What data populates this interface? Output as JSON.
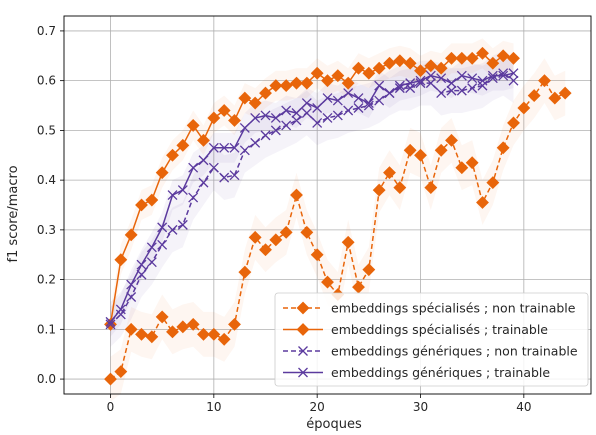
{
  "chart_data": {
    "type": "line",
    "xlabel": "époques",
    "ylabel": "f1 score/macro",
    "xlim": [
      -4.5,
      46.5
    ],
    "ylim": [
      -0.03,
      0.73
    ],
    "xticks": [
      0,
      10,
      20,
      30,
      40
    ],
    "yticks": [
      0.0,
      0.1,
      0.2,
      0.3,
      0.4,
      0.5,
      0.6,
      0.7
    ],
    "grid": true,
    "legend_position": "lower right",
    "series": [
      {
        "name": "embeddings spécialisés ; non trainable",
        "color": "#e8650a",
        "style": "dashed",
        "marker": "diamond",
        "x": [
          0,
          1,
          2,
          3,
          4,
          5,
          6,
          7,
          8,
          9,
          10,
          11,
          12,
          13,
          14,
          15,
          16,
          17,
          18,
          19,
          20,
          21,
          22,
          23,
          24,
          25,
          26,
          27,
          28,
          29,
          30,
          31,
          32,
          33,
          34,
          35,
          36,
          37,
          38,
          39,
          40,
          41,
          42,
          43,
          44
        ],
        "y": [
          0.0,
          0.015,
          0.1,
          0.09,
          0.085,
          0.125,
          0.095,
          0.105,
          0.11,
          0.09,
          0.09,
          0.08,
          0.11,
          0.215,
          0.285,
          0.26,
          0.28,
          0.295,
          0.37,
          0.295,
          0.25,
          0.195,
          0.17,
          0.275,
          0.185,
          0.22,
          0.38,
          0.415,
          0.385,
          0.46,
          0.45,
          0.385,
          0.46,
          0.48,
          0.425,
          0.435,
          0.355,
          0.395,
          0.465,
          0.515,
          0.545,
          0.57,
          0.6,
          0.565,
          0.575
        ]
      },
      {
        "name": "embeddings spécialisés ; trainable",
        "color": "#e8650a",
        "style": "solid",
        "marker": "diamond",
        "x": [
          0,
          1,
          2,
          3,
          4,
          5,
          6,
          7,
          8,
          9,
          10,
          11,
          12,
          13,
          14,
          15,
          16,
          17,
          18,
          19,
          20,
          21,
          22,
          23,
          24,
          25,
          26,
          27,
          28,
          29,
          30,
          31,
          32,
          33,
          34,
          35,
          36,
          37,
          38,
          39
        ],
        "y": [
          0.11,
          0.24,
          0.29,
          0.35,
          0.36,
          0.415,
          0.45,
          0.47,
          0.51,
          0.48,
          0.525,
          0.54,
          0.52,
          0.565,
          0.555,
          0.575,
          0.59,
          0.59,
          0.595,
          0.595,
          0.615,
          0.6,
          0.61,
          0.595,
          0.625,
          0.615,
          0.625,
          0.635,
          0.64,
          0.635,
          0.62,
          0.63,
          0.625,
          0.645,
          0.645,
          0.645,
          0.655,
          0.635,
          0.65,
          0.645
        ]
      },
      {
        "name": "embeddings génériques ; non trainable",
        "color": "#5b3a9e",
        "style": "dashed",
        "marker": "x",
        "x": [
          0,
          1,
          2,
          3,
          4,
          5,
          6,
          7,
          8,
          9,
          10,
          11,
          12,
          13,
          14,
          15,
          16,
          17,
          18,
          19,
          20,
          21,
          22,
          23,
          24,
          25,
          26,
          27,
          28,
          29,
          30,
          31,
          32,
          33,
          34,
          35,
          36,
          37,
          38,
          39
        ],
        "y": [
          0.11,
          0.13,
          0.165,
          0.21,
          0.235,
          0.27,
          0.3,
          0.31,
          0.365,
          0.395,
          0.425,
          0.405,
          0.41,
          0.46,
          0.475,
          0.49,
          0.5,
          0.51,
          0.52,
          0.535,
          0.515,
          0.525,
          0.53,
          0.54,
          0.545,
          0.55,
          0.56,
          0.575,
          0.585,
          0.585,
          0.595,
          0.595,
          0.575,
          0.58,
          0.58,
          0.585,
          0.59,
          0.605,
          0.615,
          0.6
        ]
      },
      {
        "name": "embeddings génériques ; trainable",
        "color": "#5b3a9e",
        "style": "solid",
        "marker": "x",
        "x": [
          0,
          1,
          2,
          3,
          4,
          5,
          6,
          7,
          8,
          9,
          10,
          11,
          12,
          13,
          14,
          15,
          16,
          17,
          18,
          19,
          20,
          21,
          22,
          23,
          24,
          25,
          26,
          27,
          28,
          29,
          30,
          31,
          32,
          33,
          34,
          35,
          36,
          37,
          38,
          39
        ],
        "y": [
          0.115,
          0.14,
          0.19,
          0.23,
          0.265,
          0.305,
          0.37,
          0.38,
          0.425,
          0.44,
          0.465,
          0.465,
          0.465,
          0.505,
          0.525,
          0.53,
          0.525,
          0.54,
          0.535,
          0.555,
          0.545,
          0.565,
          0.56,
          0.575,
          0.565,
          0.555,
          0.59,
          0.575,
          0.59,
          0.595,
          0.6,
          0.61,
          0.605,
          0.595,
          0.61,
          0.605,
          0.6,
          0.61,
          0.61,
          0.615
        ]
      }
    ]
  }
}
